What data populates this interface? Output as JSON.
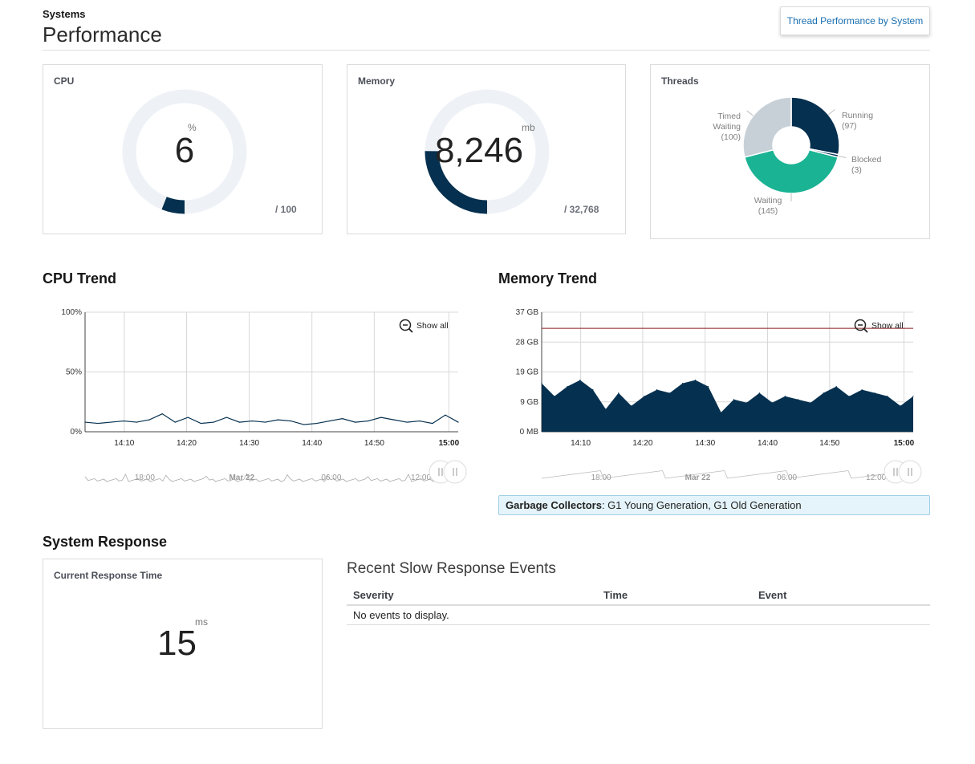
{
  "header": {
    "eyebrow": "Systems",
    "title": "Performance",
    "thread_button": "Thread Performance by System"
  },
  "cpu": {
    "label": "CPU",
    "value": "6",
    "unit": "%",
    "max": "/ 100",
    "fraction": 0.06
  },
  "memory": {
    "label": "Memory",
    "value": "8,246",
    "unit": "mb",
    "max": "/ 32,768",
    "fraction": 0.2516
  },
  "threads": {
    "label": "Threads",
    "slices": [
      {
        "name": "Running",
        "count": "(97)",
        "value": 97,
        "color": "#05304f"
      },
      {
        "name": "Blocked",
        "count": "(3)",
        "value": 3,
        "color": "#0b3a5c"
      },
      {
        "name": "Waiting",
        "count": "(145)",
        "value": 145,
        "color": "#1ab394"
      },
      {
        "name": "Timed",
        "name2": "Waiting",
        "count": "(100)",
        "value": 100,
        "color": "#c8d0d7"
      }
    ]
  },
  "cpu_trend": {
    "title": "CPU Trend",
    "show_all": "Show all",
    "y_ticks": [
      "100%",
      "50%",
      "0%"
    ],
    "x_ticks": [
      "14:10",
      "14:20",
      "14:30",
      "14:40",
      "14:50",
      "15:00"
    ],
    "nav_labels": [
      "18:00",
      "Mar 22",
      "06:00",
      "12:00"
    ]
  },
  "mem_trend": {
    "title": "Memory Trend",
    "show_all": "Show all",
    "y_ticks": [
      "37 GB",
      "28 GB",
      "19 GB",
      "9 GB",
      "0 MB"
    ],
    "x_ticks": [
      "14:10",
      "14:20",
      "14:30",
      "14:40",
      "14:50",
      "15:00"
    ],
    "nav_labels": [
      "18:00",
      "Mar 22",
      "06:00",
      "12:00"
    ]
  },
  "chart_data": [
    {
      "type": "line",
      "title": "CPU Trend",
      "xlabel": "",
      "ylabel": "",
      "ylim": [
        0,
        100
      ],
      "x": [
        "14:04",
        "14:06",
        "14:08",
        "14:10",
        "14:12",
        "14:14",
        "14:16",
        "14:18",
        "14:20",
        "14:22",
        "14:24",
        "14:26",
        "14:28",
        "14:30",
        "14:32",
        "14:34",
        "14:36",
        "14:38",
        "14:40",
        "14:42",
        "14:44",
        "14:46",
        "14:48",
        "14:50",
        "14:52",
        "14:54",
        "14:56",
        "14:58",
        "15:00",
        "15:02"
      ],
      "values": [
        8,
        7,
        8,
        9,
        8,
        10,
        15,
        8,
        12,
        7,
        8,
        12,
        8,
        9,
        8,
        10,
        9,
        6,
        7,
        9,
        11,
        8,
        9,
        12,
        10,
        8,
        9,
        7,
        14,
        8
      ],
      "color": "#05304f"
    },
    {
      "type": "area",
      "title": "Memory Trend",
      "xlabel": "",
      "ylabel": "",
      "ylim": [
        0,
        37
      ],
      "unit": "GB",
      "threshold": 32,
      "x": [
        "14:04",
        "14:06",
        "14:08",
        "14:10",
        "14:12",
        "14:14",
        "14:16",
        "14:18",
        "14:20",
        "14:22",
        "14:24",
        "14:26",
        "14:28",
        "14:30",
        "14:32",
        "14:34",
        "14:36",
        "14:38",
        "14:40",
        "14:42",
        "14:44",
        "14:46",
        "14:48",
        "14:50",
        "14:52",
        "14:54",
        "14:56",
        "14:58",
        "15:00",
        "15:02"
      ],
      "values": [
        15,
        11,
        14,
        16,
        13,
        7,
        12,
        8,
        11,
        13,
        12,
        15,
        16,
        14,
        6,
        10,
        9,
        12,
        9,
        11,
        10,
        9,
        12,
        14,
        11,
        13,
        12,
        11,
        8,
        11
      ],
      "color": "#05304f",
      "threshold_color": "#8b1a1a"
    }
  ],
  "response": {
    "section_title": "System Response",
    "card_label": "Current Response Time",
    "value": "15",
    "unit": "ms"
  },
  "events": {
    "title": "Recent Slow Response Events",
    "columns": [
      "Severity",
      "Time",
      "Event"
    ],
    "empty": "No events to display."
  },
  "gc": {
    "label": "Garbage Collectors",
    "value": ": G1 Young Generation, G1 Old Generation"
  }
}
